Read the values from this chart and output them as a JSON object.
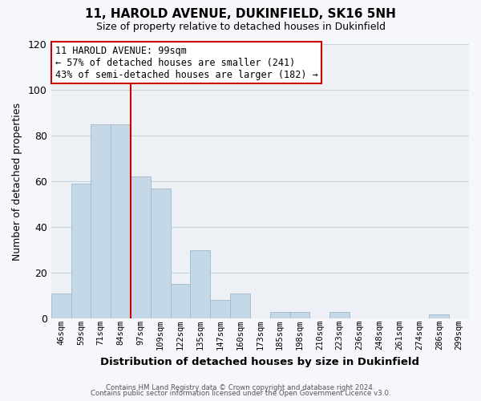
{
  "title": "11, HAROLD AVENUE, DUKINFIELD, SK16 5NH",
  "subtitle": "Size of property relative to detached houses in Dukinfield",
  "xlabel": "Distribution of detached houses by size in Dukinfield",
  "ylabel": "Number of detached properties",
  "categories": [
    "46sqm",
    "59sqm",
    "71sqm",
    "84sqm",
    "97sqm",
    "109sqm",
    "122sqm",
    "135sqm",
    "147sqm",
    "160sqm",
    "173sqm",
    "185sqm",
    "198sqm",
    "210sqm",
    "223sqm",
    "236sqm",
    "248sqm",
    "261sqm",
    "274sqm",
    "286sqm",
    "299sqm"
  ],
  "values": [
    11,
    59,
    85,
    85,
    62,
    57,
    15,
    30,
    8,
    11,
    0,
    3,
    3,
    0,
    3,
    0,
    0,
    0,
    0,
    2,
    0
  ],
  "bar_color": "#c5d8e8",
  "bar_edge_color": "#a0b8cc",
  "vline_index": 4,
  "vline_color": "#cc0000",
  "annotation_title": "11 HAROLD AVENUE: 99sqm",
  "annotation_line1": "← 57% of detached houses are smaller (241)",
  "annotation_line2": "43% of semi-detached houses are larger (182) →",
  "annotation_box_color": "#ffffff",
  "annotation_box_edge_color": "#cc0000",
  "ylim": [
    0,
    120
  ],
  "yticks": [
    0,
    20,
    40,
    60,
    80,
    100,
    120
  ],
  "grid_color": "#c8d4de",
  "bg_color": "#edf1f5",
  "fig_color": "#f5f7fa",
  "footer1": "Contains HM Land Registry data © Crown copyright and database right 2024.",
  "footer2": "Contains public sector information licensed under the Open Government Licence v3.0."
}
